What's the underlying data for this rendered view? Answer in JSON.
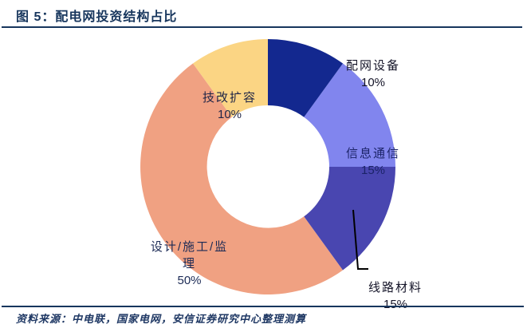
{
  "header": {
    "title": "图 5：配电网投资结构占比"
  },
  "footer": {
    "source": "资料来源：中电联，国家电网，安信证券研究中心整理测算"
  },
  "colors": {
    "accent_navy": "#17365D",
    "leader_line": "#000000",
    "background": "#FFFFFF"
  },
  "chart_data": {
    "type": "pie",
    "subtype": "donut",
    "title": "配电网投资结构占比",
    "start_angle_deg": 0,
    "direction": "clockwise",
    "inner_radius_ratio": 0.48,
    "legend": "none",
    "segments": [
      {
        "label": "配网设备",
        "value": 10,
        "display": "10%",
        "color": "#13288F",
        "label_position": "outside"
      },
      {
        "label": "信息通信",
        "value": 15,
        "display": "15%",
        "color": "#8185EE",
        "label_position": "inside"
      },
      {
        "label": "线路材料",
        "value": 15,
        "display": "15%",
        "color": "#4946B0",
        "label_position": "outside",
        "leader_line": true
      },
      {
        "label": "设计/施工/监理",
        "value": 50,
        "display": "50%",
        "color": "#F0A182",
        "label_position": "inside"
      },
      {
        "label": "技改扩容",
        "value": 10,
        "display": "10%",
        "color": "#FBD584",
        "label_position": "inside"
      }
    ]
  }
}
